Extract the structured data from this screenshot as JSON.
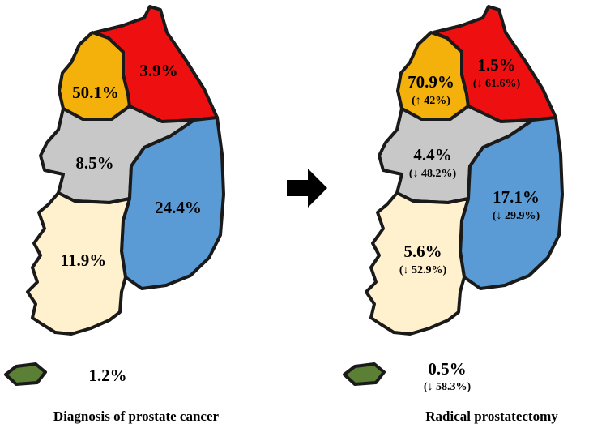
{
  "colors": {
    "northwest": "#f5b10b",
    "northeast": "#ee1010",
    "central": "#c8c8c8",
    "east": "#5b9bd5",
    "southwest": "#fff1cd",
    "island": "#5a7f35",
    "outline": "#1a1a1a",
    "arrow": "#000000"
  },
  "left_map": {
    "caption": "Diagnosis of prostate cancer",
    "northwest": "50.1%",
    "northeast": "3.9%",
    "central": "8.5%",
    "east": "24.4%",
    "southwest": "11.9%",
    "island": "1.2%"
  },
  "arrow_icon": "right-arrow-icon",
  "right_map": {
    "caption": "Radical prostatectomy",
    "northwest": "70.9%",
    "northwest_change": "(↑ 42%)",
    "northeast": "1.5%",
    "northeast_change": "(↓ 61.6%)",
    "central": "4.4%",
    "central_change": "(↓ 48.2%)",
    "east": "17.1%",
    "east_change": "(↓ 29.9%)",
    "southwest": "5.6%",
    "southwest_change": "(↓ 52.9%)",
    "island": "0.5%",
    "island_change": "(↓ 58.3%)"
  }
}
